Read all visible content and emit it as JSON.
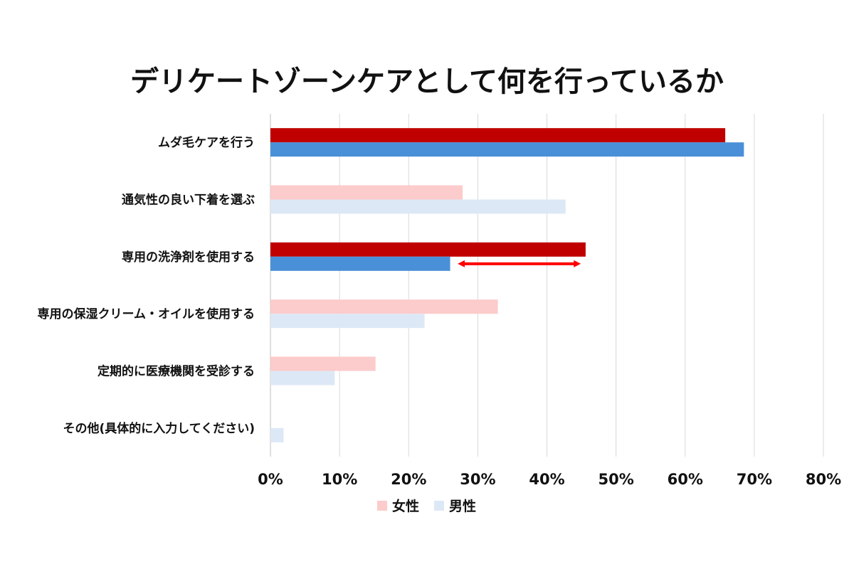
{
  "chart_data": {
    "type": "bar",
    "orientation": "horizontal",
    "title": "デリケートゾーンケアとして何を行っているか",
    "categories": [
      "ムダ毛ケアを行う",
      "通気性の良い下着を選ぶ",
      "専用の洗浄剤を使用する",
      "専用の保湿クリーム・オイルを使用する",
      "定期的に医療機関を受診する",
      "その他(具体的に入力してください)"
    ],
    "series": [
      {
        "name": "女性",
        "values": [
          65.8,
          27.8,
          45.6,
          32.9,
          15.2,
          0.0
        ],
        "color": "#fccbcb"
      },
      {
        "name": "男性",
        "values": [
          68.5,
          42.7,
          26.0,
          22.3,
          9.3,
          1.9
        ],
        "color": "#dde8f6"
      }
    ],
    "highlighted_categories": [
      0,
      2
    ],
    "highlight_colors": {
      "女性": "#c00000",
      "男性": "#4a90d9"
    },
    "annotation": {
      "type": "double-arrow",
      "category_index": 2,
      "from": 27.5,
      "to": 44.5,
      "color": "#ff0000"
    },
    "xlim": [
      0,
      80
    ],
    "xticks": [
      0,
      10,
      20,
      30,
      40,
      50,
      60,
      70,
      80
    ],
    "tick_labels": [
      "0%",
      "10%",
      "20%",
      "30%",
      "40%",
      "50%",
      "60%",
      "70%",
      "80%"
    ],
    "grid": true,
    "legend_position": "bottom"
  }
}
